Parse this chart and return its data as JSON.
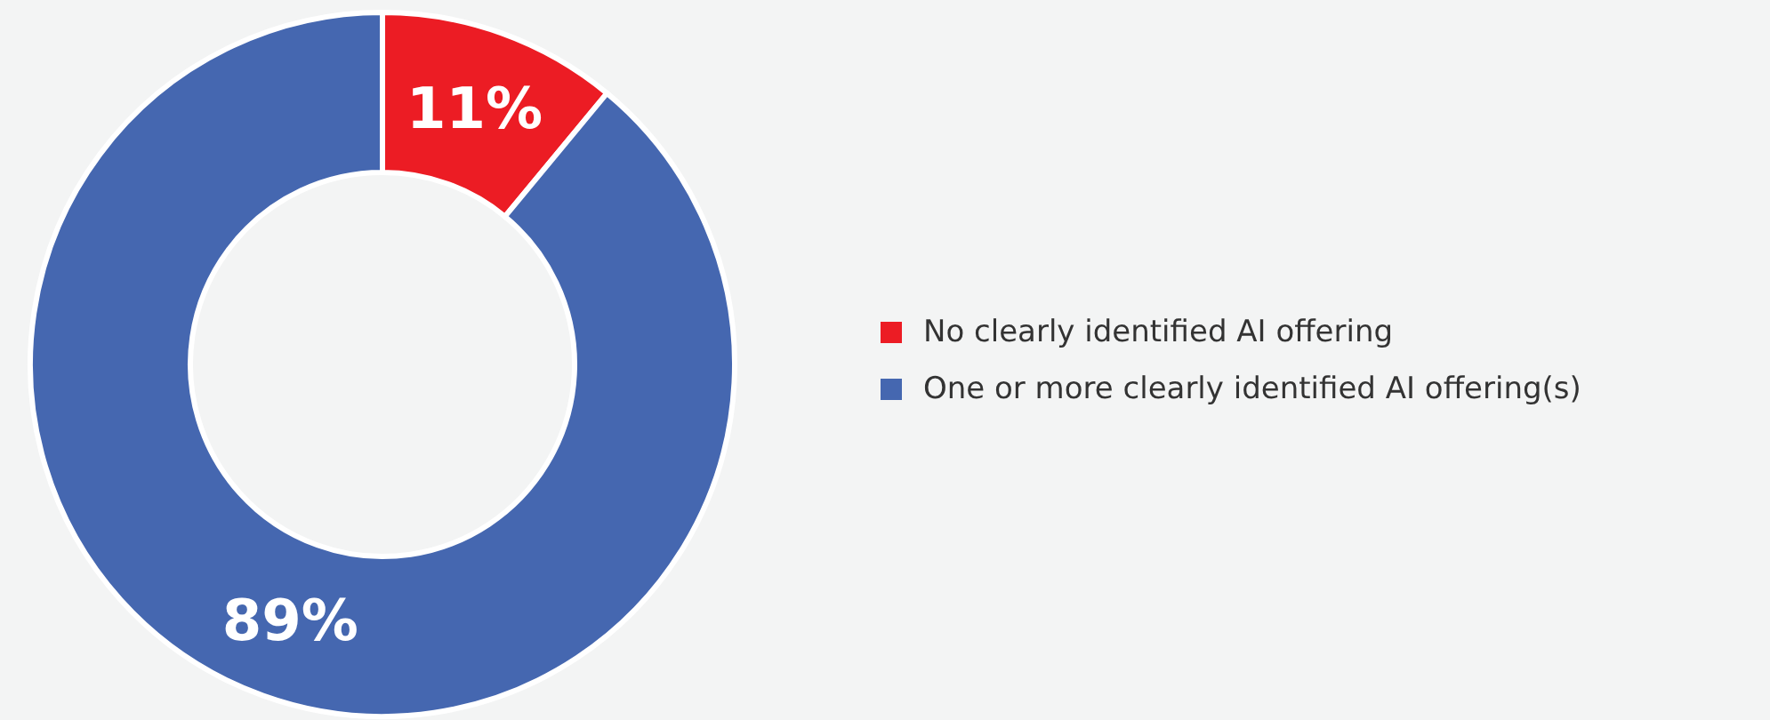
{
  "chart_data": {
    "type": "donut",
    "categories": [
      "No clearly identified AI offering",
      "One or more clearly identified AI offering(s)"
    ],
    "values": [
      11,
      89
    ],
    "colors": [
      "#ec1c24",
      "#4567b0"
    ],
    "value_labels": [
      "11%",
      "89%"
    ],
    "legend": "right"
  }
}
